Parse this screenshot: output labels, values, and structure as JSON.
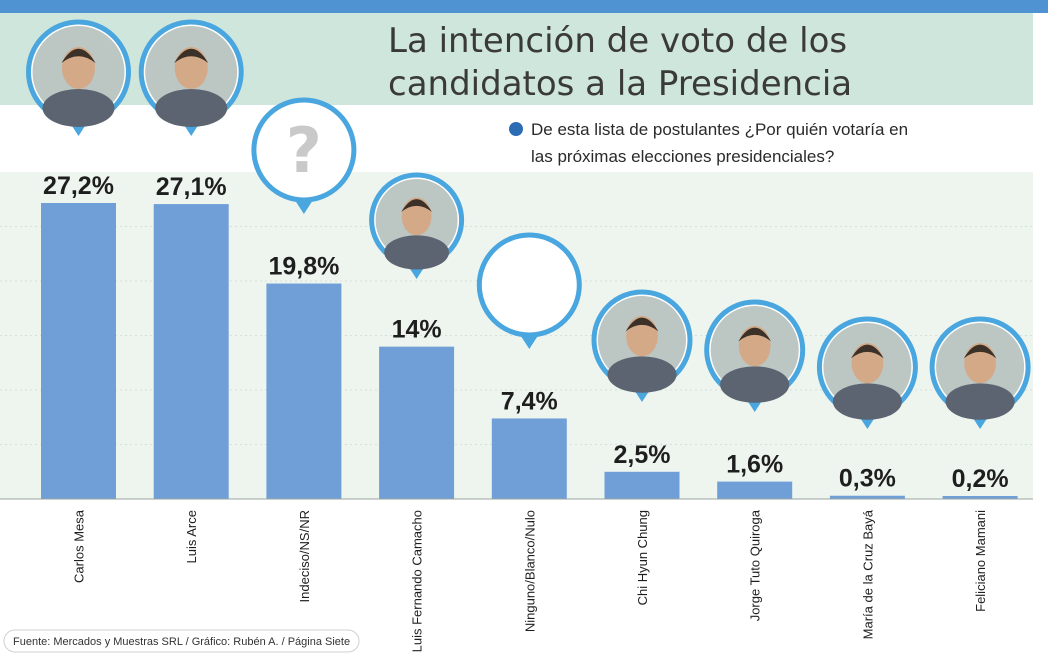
{
  "title_lines": [
    "La intención de voto de los",
    "candidatos a la Presidencia"
  ],
  "question_lines": [
    "De esta lista de postulantes ¿Por quién votaría en",
    "las próximas elecciones presidenciales?"
  ],
  "source": "Fuente: Mercados y Muestras SRL / Gráfico: Rubén A. / Página Siete",
  "colors": {
    "bar": "#6f9fd6",
    "header": "#cfe6dc",
    "accent": "#4f93d3",
    "plot_bg": "#eef5ef",
    "avatar_ring": "#4aa6df",
    "question_bullet": "#2b6cb3"
  },
  "chart_data": {
    "type": "bar",
    "title": "La intención de voto de los candidatos a la Presidencia",
    "subtitle": "De esta lista de postulantes ¿Por quién votaría en las próximas elecciones presidenciales?",
    "xlabel": "",
    "ylabel": "",
    "ylim": [
      0,
      27.2
    ],
    "grid": true,
    "categories": [
      "Carlos Mesa",
      "Luis Arce",
      "Indeciso/NS/NR",
      "Luis Fernando Camacho",
      "Ninguno/Blanco/Nulo",
      "Chi Hyun Chung",
      "Jorge Tuto Quiroga",
      "María de la Cruz Bayá",
      "Feliciano Mamani"
    ],
    "values": [
      27.2,
      27.1,
      19.8,
      14,
      7.4,
      2.5,
      1.6,
      0.3,
      0.2
    ],
    "data_labels": [
      "27,2%",
      "27,1%",
      "19,8%",
      "14%",
      "7,4%",
      "2,5%",
      "1,6%",
      "0,3%",
      "0,2%"
    ],
    "avatars": [
      "candidate-photo",
      "candidate-photo",
      "question-mark",
      "candidate-photo",
      "blank-circle",
      "candidate-photo",
      "candidate-photo",
      "candidate-photo",
      "candidate-photo"
    ],
    "question_mark": "?"
  }
}
